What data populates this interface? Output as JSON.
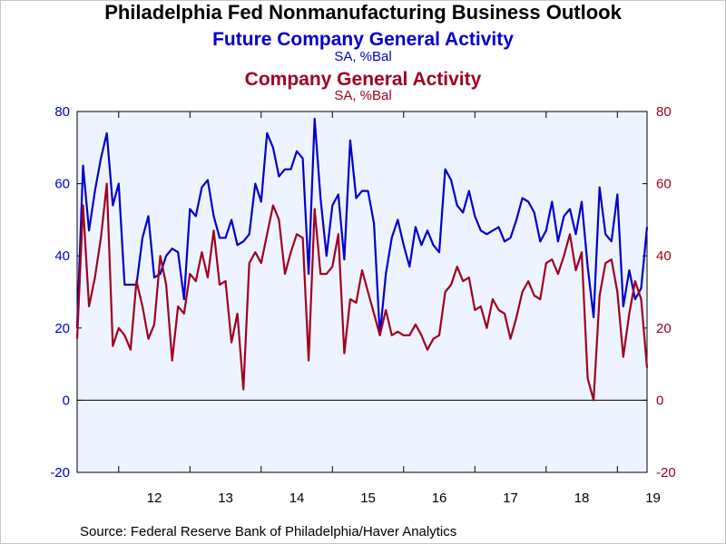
{
  "title": "Philadelphia Fed Nonmanufacturing Business Outlook",
  "source": "Source:  Federal Reserve Bank of Philadelphia/Haver Analytics",
  "colors": {
    "series1": "#0000cc",
    "series2": "#a00020",
    "plot_bg": "#eef4ff",
    "zero_line": "#000000"
  },
  "chart_data": {
    "type": "line",
    "title": "Philadelphia Fed Nonmanufacturing Business Outlook",
    "ylim": [
      -20,
      80
    ],
    "yticks": [
      -20,
      0,
      20,
      40,
      60,
      80
    ],
    "left_axis_color": "#0000cc",
    "right_axis_color": "#a00020",
    "x_start": "2011-06",
    "x_end": "2019-06",
    "x_tick_labels": [
      {
        "label": "12",
        "x": 2012.5
      },
      {
        "label": "13",
        "x": 2013.5
      },
      {
        "label": "14",
        "x": 2014.5
      },
      {
        "label": "15",
        "x": 2015.5
      },
      {
        "label": "16",
        "x": 2016.5
      },
      {
        "label": "17",
        "x": 2017.5
      },
      {
        "label": "18",
        "x": 2018.5
      },
      {
        "label": "19",
        "x": 2019.5
      }
    ],
    "grid": false,
    "legend": "titles-top",
    "series": [
      {
        "name": "Future Company General Activity",
        "units": "SA, %Bal",
        "color": "#0000cc",
        "values": [
          20,
          65,
          47,
          58,
          67,
          74,
          54,
          60,
          32,
          32,
          32,
          45,
          51,
          34,
          35,
          40,
          42,
          41,
          28,
          53,
          51,
          59,
          61,
          51,
          45,
          45,
          50,
          43,
          44,
          46,
          60,
          55,
          74,
          70,
          62,
          64,
          64,
          69,
          67,
          35,
          78,
          56,
          40,
          54,
          57,
          39,
          72,
          56,
          58,
          58,
          49,
          18,
          35,
          45,
          50,
          43,
          37,
          48,
          43,
          47,
          43,
          41,
          64,
          61,
          54,
          52,
          58,
          51,
          47,
          46,
          47,
          48,
          44,
          45,
          50,
          56,
          55,
          52,
          44,
          47,
          55,
          44,
          51,
          53,
          46,
          55,
          37,
          23,
          59,
          46,
          44,
          57,
          26,
          36,
          28,
          31,
          48
        ]
      },
      {
        "name": "Company General Activity",
        "units": "SA, %Bal",
        "color": "#a00020",
        "values": [
          17,
          54,
          26,
          34,
          45,
          60,
          15,
          20,
          18,
          14,
          33,
          26,
          17,
          21,
          40,
          32,
          11,
          26,
          24,
          35,
          33,
          41,
          34,
          47,
          32,
          33,
          16,
          24,
          3,
          38,
          41,
          38,
          46,
          54,
          50,
          35,
          41,
          46,
          45,
          11,
          53,
          35,
          35,
          37,
          46,
          13,
          28,
          27,
          36,
          30,
          24,
          18,
          25,
          18,
          19,
          18,
          18,
          21,
          18,
          14,
          17,
          18,
          30,
          32,
          37,
          33,
          34,
          25,
          26,
          20,
          28,
          25,
          24,
          17,
          23,
          30,
          33,
          29,
          28,
          38,
          39,
          35,
          40,
          46,
          36,
          41,
          6,
          0,
          29,
          38,
          39,
          30,
          12,
          24,
          33,
          28,
          9
        ]
      }
    ]
  }
}
